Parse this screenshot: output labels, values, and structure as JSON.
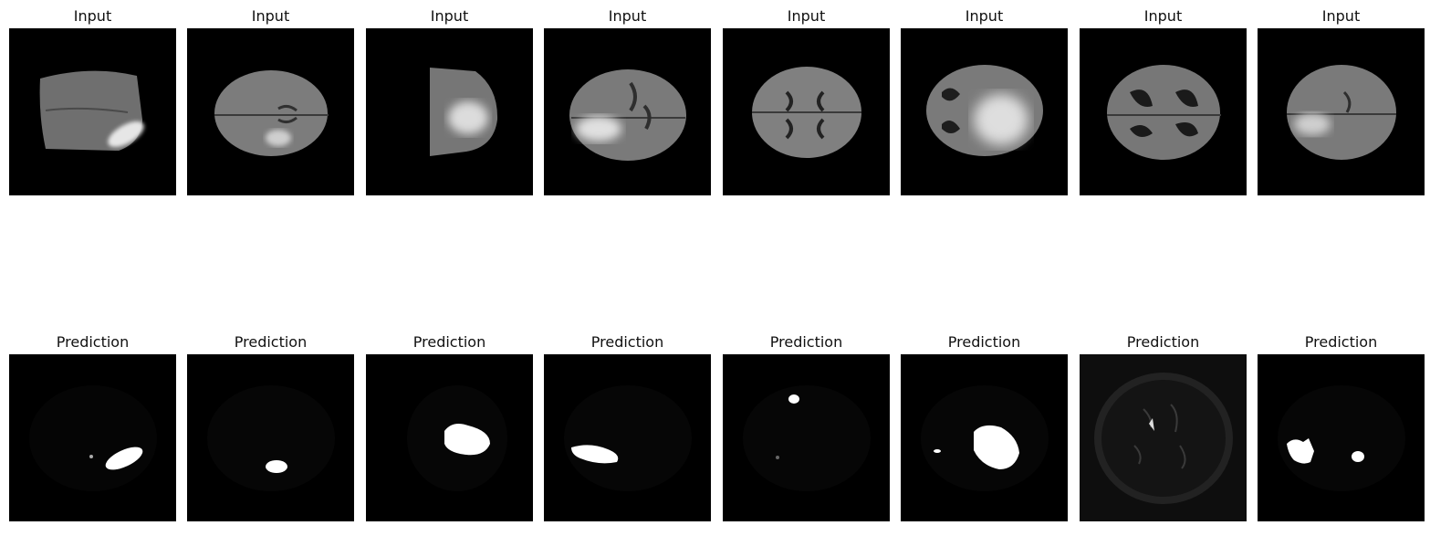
{
  "rows": {
    "input_title": "Input",
    "prediction_title": "Prediction"
  },
  "panels": [
    {
      "input": "brain-slice-1",
      "prediction": "mask-1"
    },
    {
      "input": "brain-slice-2",
      "prediction": "mask-2"
    },
    {
      "input": "brain-slice-3",
      "prediction": "mask-3"
    },
    {
      "input": "brain-slice-4",
      "prediction": "mask-4"
    },
    {
      "input": "brain-slice-5",
      "prediction": "mask-5"
    },
    {
      "input": "brain-slice-6",
      "prediction": "mask-6"
    },
    {
      "input": "brain-slice-7",
      "prediction": "mask-7"
    },
    {
      "input": "brain-slice-8",
      "prediction": "mask-8"
    }
  ],
  "colors": {
    "background": "#000000",
    "tissue": "#7a7a7a",
    "highlight": "#ffffff"
  }
}
